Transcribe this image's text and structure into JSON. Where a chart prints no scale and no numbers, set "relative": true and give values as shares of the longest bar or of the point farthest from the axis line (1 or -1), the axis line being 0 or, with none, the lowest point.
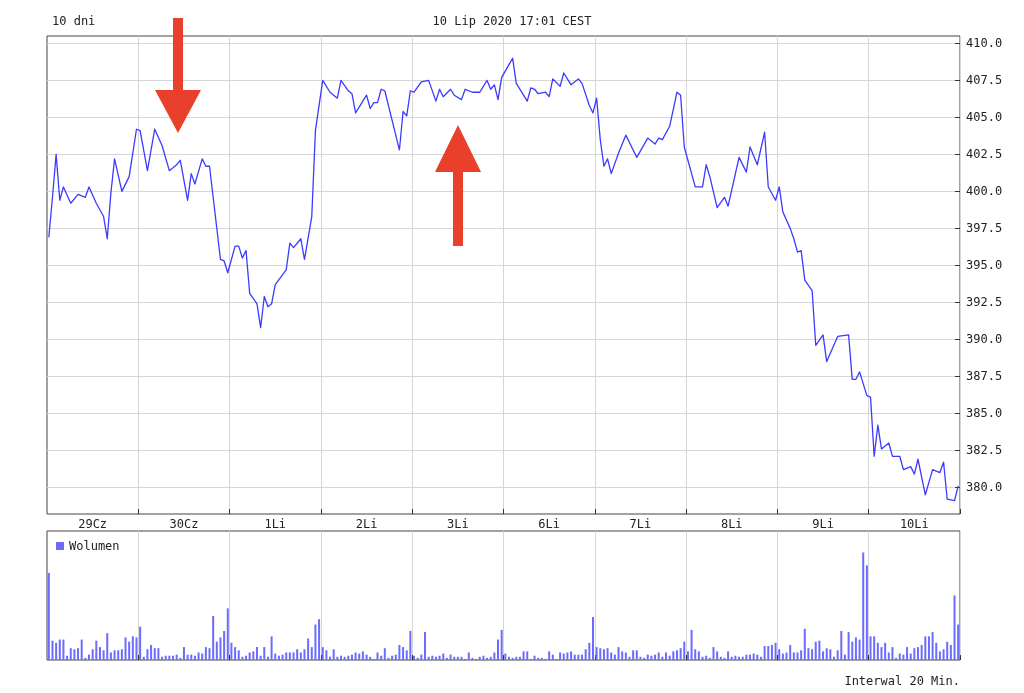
{
  "chart_data": [
    {
      "type": "line",
      "title": "10 dni",
      "subtitle": "10 Lip 2020 17:01 CEST",
      "marker": "none",
      "grid": true,
      "categories": [
        null,
        null,
        null,
        null,
        null,
        null,
        null,
        null,
        null,
        null,
        null,
        null,
        "29Cz",
        null,
        null,
        null,
        null,
        null,
        null,
        null,
        null,
        null,
        null,
        null,
        null,
        null,
        null,
        null,
        null,
        null,
        null,
        null,
        null,
        null,
        null,
        null,
        null,
        "30Cz",
        null,
        null,
        null,
        null,
        null,
        null,
        null,
        null,
        null,
        null,
        null,
        null,
        null,
        null,
        null,
        null,
        null,
        null,
        null,
        null,
        null,
        null,
        null,
        null,
        "1Li",
        null,
        null,
        null,
        null,
        null,
        null,
        null,
        null,
        null,
        null,
        null,
        null,
        null,
        null,
        null,
        null,
        null,
        null,
        null,
        null,
        null,
        null,
        null,
        null,
        "2Li",
        null,
        null,
        null,
        null,
        null,
        null,
        null,
        null,
        null,
        null,
        null,
        null,
        null,
        null,
        null,
        null,
        null,
        null,
        null,
        null,
        null,
        null,
        null,
        null,
        "3Li",
        null,
        null,
        null,
        null,
        null,
        null,
        null,
        null,
        null,
        null,
        null,
        null,
        null,
        null,
        null,
        null,
        null,
        null,
        null,
        null,
        null,
        null,
        null,
        null,
        "6Li",
        null,
        null,
        null,
        null,
        null,
        null,
        null,
        null,
        null,
        null,
        null,
        null,
        null,
        null,
        null,
        null,
        null,
        null,
        null,
        null,
        null,
        null,
        null,
        null,
        "7Li",
        null,
        null,
        null,
        null,
        null,
        null,
        null,
        null,
        null,
        null,
        null,
        null,
        null,
        null,
        null,
        null,
        null,
        null,
        null,
        null,
        null,
        null,
        null,
        null,
        "8Li",
        null,
        null,
        null,
        null,
        null,
        null,
        null,
        null,
        null,
        null,
        null,
        null,
        null,
        null,
        null,
        null,
        null,
        null,
        null,
        null,
        null,
        null,
        null,
        null,
        "9Li",
        null,
        null,
        null,
        null,
        null,
        null,
        null,
        null,
        null,
        null,
        null,
        null,
        null,
        null,
        null,
        null,
        null,
        null,
        null,
        null,
        null,
        null,
        null,
        null,
        "10Li",
        null,
        null,
        null,
        null,
        null,
        null,
        null,
        null,
        null,
        null,
        null,
        null
      ],
      "series": [
        {
          "color": "#3b3bff",
          "values": [
            396.9,
            399.6,
            402.5,
            399.4,
            400.3,
            null,
            399.2,
            null,
            399.8,
            null,
            399.6,
            400.3,
            null,
            399.2,
            null,
            398.3,
            396.8,
            399.9,
            402.2,
            null,
            400.0,
            null,
            401.0,
            null,
            404.2,
            404.1,
            null,
            401.4,
            null,
            404.2,
            null,
            403.1,
            null,
            401.4,
            null,
            401.8,
            402.1,
            null,
            399.4,
            401.2,
            400.5,
            null,
            402.2,
            401.7,
            401.7,
            null,
            null,
            395.4,
            395.3,
            394.5,
            null,
            396.3,
            396.3,
            395.5,
            396.0,
            393.1,
            null,
            392.4,
            390.8,
            392.9,
            392.2,
            392.4,
            393.7,
            null,
            null,
            394.7,
            396.5,
            396.2,
            null,
            396.8,
            395.4,
            null,
            398.3,
            404.1,
            null,
            407.5,
            null,
            406.7,
            null,
            406.3,
            407.5,
            null,
            406.8,
            406.6,
            405.3,
            null,
            null,
            406.5,
            405.6,
            406.0,
            406.0,
            406.9,
            406.8,
            null,
            404.8,
            null,
            402.8,
            405.4,
            405.1,
            406.8,
            406.7,
            null,
            407.4,
            null,
            407.5,
            null,
            406.1,
            406.9,
            406.4,
            null,
            406.9,
            406.5,
            null,
            406.2,
            406.9,
            null,
            406.7,
            null,
            406.7,
            null,
            407.5,
            406.9,
            407.2,
            406.2,
            407.7,
            null,
            null,
            409.0,
            407.3,
            null,
            null,
            406.1,
            407.0,
            406.9,
            406.6,
            null,
            406.7,
            406.4,
            407.6,
            null,
            407.1,
            408.0,
            null,
            407.2,
            null,
            407.6,
            407.3,
            null,
            405.8,
            405.3,
            406.3,
            403.5,
            401.7,
            402.2,
            401.2,
            null,
            402.6,
            null,
            403.8,
            null,
            402.8,
            402.3,
            null,
            null,
            403.6,
            null,
            403.2,
            403.6,
            403.5,
            null,
            404.4,
            null,
            406.7,
            406.5,
            403.0,
            null,
            null,
            400.3,
            null,
            400.3,
            401.8,
            401.0,
            null,
            398.9,
            null,
            399.6,
            399.0,
            null,
            null,
            402.3,
            null,
            401.3,
            403.0,
            null,
            401.8,
            null,
            404.0,
            400.3,
            null,
            399.4,
            400.3,
            398.6,
            null,
            397.5,
            396.8,
            395.9,
            396.0,
            394.0,
            null,
            393.3,
            389.6,
            null,
            390.3,
            388.5,
            null,
            null,
            390.2,
            null,
            null,
            390.3,
            387.3,
            387.3,
            387.8,
            null,
            386.2,
            386.1,
            382.1,
            384.2,
            382.6,
            null,
            383.0,
            382.1,
            null,
            382.1,
            381.2,
            null,
            381.4,
            380.9,
            381.9,
            null,
            379.5,
            null,
            381.2,
            null,
            381.0,
            381.7,
            379.2,
            null,
            379.1,
            380.1
          ]
        }
      ],
      "ylim": [
        378.2,
        410.5
      ],
      "yticks": [
        {
          "value": 380,
          "label": "380.0"
        },
        {
          "value": 382.5,
          "label": "382.5"
        },
        {
          "value": 385,
          "label": "385.0"
        },
        {
          "value": 387.5,
          "label": "387.5"
        },
        {
          "value": 390,
          "label": "390.0"
        },
        {
          "value": 392.5,
          "label": "392.5"
        },
        {
          "value": 395,
          "label": "395.0"
        },
        {
          "value": 397.5,
          "label": "397.5"
        },
        {
          "value": 400,
          "label": "400.0"
        },
        {
          "value": 402.5,
          "label": "402.5"
        },
        {
          "value": 405,
          "label": "405.0"
        },
        {
          "value": 407.5,
          "label": "407.5"
        },
        {
          "value": 410,
          "label": "410.0"
        }
      ]
    },
    {
      "type": "bar",
      "relative": true,
      "grid": "x",
      "legend": "top left",
      "annotations": [
        "Interwal 20 Min."
      ],
      "categories": [
        null,
        null,
        null,
        null,
        null,
        null,
        null,
        null,
        null,
        null,
        null,
        null,
        null,
        null,
        null,
        null,
        null,
        null,
        null,
        null,
        null,
        null,
        null,
        null,
        null,
        null,
        null,
        null,
        null,
        null,
        null,
        null,
        null,
        null,
        null,
        null,
        null,
        null,
        null,
        null,
        null,
        null,
        null,
        null,
        null,
        null,
        null,
        null,
        null,
        null,
        null,
        null,
        null,
        null,
        null,
        null,
        null,
        null,
        null,
        null,
        null,
        null,
        null,
        null,
        null,
        null,
        null,
        null,
        null,
        null,
        null,
        null,
        null,
        null,
        null,
        null,
        null,
        null,
        null,
        null,
        null,
        null,
        null,
        null,
        null,
        null,
        null,
        null,
        null,
        null,
        null,
        null,
        null,
        null,
        null,
        null,
        null,
        null,
        null,
        null,
        null,
        null,
        null,
        null,
        null,
        null,
        null,
        null,
        null,
        null,
        null,
        null,
        null,
        null,
        null,
        null,
        null,
        null,
        null,
        null,
        null,
        null,
        null,
        null,
        null,
        null,
        null,
        null,
        null,
        null,
        null,
        null,
        null,
        null,
        null,
        null,
        null,
        null,
        null,
        null,
        null,
        null,
        null,
        null,
        null,
        null,
        null,
        null,
        null,
        null,
        null,
        null,
        null,
        null,
        null,
        null,
        null,
        null,
        null,
        null,
        null,
        null,
        null,
        null,
        null,
        null,
        null,
        null,
        null,
        null,
        null,
        null,
        null,
        null,
        null,
        null,
        null,
        null,
        null,
        null,
        null,
        null,
        null,
        null,
        null,
        null,
        null,
        null,
        null,
        null,
        null,
        null,
        null,
        null,
        null,
        null,
        null,
        null,
        null,
        null,
        null,
        null,
        null,
        null,
        null,
        null,
        null,
        null,
        null,
        null,
        null,
        null,
        null,
        null,
        null,
        null,
        null,
        null,
        null,
        null,
        null,
        null,
        null,
        null,
        null,
        null,
        null,
        null,
        null,
        null,
        null,
        null,
        null,
        null,
        null,
        null,
        null,
        null,
        null,
        null,
        null,
        null,
        null,
        null,
        null,
        null,
        null,
        null,
        null,
        null
      ],
      "series": [
        {
          "name": "Wolumen",
          "color": "#6b6bff",
          "values": [
            0.81,
            0.18,
            0.16,
            0.19,
            0.19,
            0.04,
            0.11,
            0.1,
            0.11,
            0.19,
            0.02,
            0.05,
            0.1,
            0.18,
            0.12,
            0.09,
            0.25,
            0.07,
            0.09,
            0.09,
            0.1,
            0.21,
            0.17,
            0.22,
            0.21,
            0.31,
            0.03,
            0.1,
            0.14,
            0.11,
            0.11,
            0.03,
            0.04,
            0.04,
            0.04,
            0.05,
            0.02,
            0.12,
            0.05,
            0.05,
            0.04,
            0.07,
            0.06,
            0.12,
            0.11,
            0.41,
            0.17,
            0.21,
            0.27,
            0.48,
            0.16,
            0.12,
            0.09,
            0.03,
            0.04,
            0.07,
            0.08,
            0.12,
            0.04,
            0.12,
            0.03,
            0.22,
            0.06,
            0.04,
            0.05,
            0.07,
            0.07,
            0.07,
            0.1,
            0.07,
            0.1,
            0.2,
            0.12,
            0.33,
            0.38,
            0.12,
            0.09,
            0.03,
            0.1,
            0.03,
            0.04,
            0.03,
            0.04,
            0.05,
            0.07,
            0.06,
            0.08,
            0.05,
            0.03,
            0.01,
            0.07,
            0.04,
            0.11,
            0.02,
            0.04,
            0.05,
            0.14,
            0.12,
            0.09,
            0.27,
            0.04,
            0.02,
            0.05,
            0.26,
            0.03,
            0.04,
            0.03,
            0.04,
            0.06,
            0.02,
            0.05,
            0.03,
            0.03,
            0.03,
            0.01,
            0.07,
            0.02,
            0.01,
            0.03,
            0.04,
            0.02,
            0.03,
            0.07,
            0.19,
            0.28,
            0.06,
            0.03,
            0.02,
            0.03,
            0.03,
            0.08,
            0.08,
            0.01,
            0.04,
            0.02,
            0.02,
            0.01,
            0.08,
            0.05,
            0.01,
            0.07,
            0.06,
            0.07,
            0.08,
            0.05,
            0.05,
            0.05,
            0.1,
            0.16,
            0.4,
            0.12,
            0.11,
            0.1,
            0.11,
            0.07,
            0.05,
            0.12,
            0.08,
            0.07,
            0.03,
            0.09,
            0.09,
            0.03,
            0.02,
            0.05,
            0.04,
            0.05,
            0.07,
            0.03,
            0.07,
            0.04,
            0.08,
            0.09,
            0.11,
            0.17,
            0.08,
            0.28,
            0.1,
            0.08,
            0.03,
            0.04,
            0.02,
            0.12,
            0.08,
            0.03,
            0.02,
            0.08,
            0.03,
            0.04,
            0.03,
            0.03,
            0.05,
            0.05,
            0.06,
            0.05,
            0.03,
            0.13,
            0.13,
            0.14,
            0.16,
            0.1,
            0.06,
            0.07,
            0.14,
            0.07,
            0.07,
            0.09,
            0.29,
            0.11,
            0.1,
            0.17,
            0.18,
            0.08,
            0.11,
            0.1,
            0.03,
            0.09,
            0.27,
            0.05,
            0.26,
            0.17,
            0.21,
            0.19,
            1,
            0.88,
            0.22,
            0.22,
            0.16,
            0.12,
            0.16,
            0.07,
            0.12,
            0.02,
            0.06,
            0.05,
            0.12,
            0.06,
            0.11,
            0.12,
            0.14,
            0.22,
            0.22,
            0.26,
            0.16,
            0.08,
            0.1,
            0.17,
            0.14,
            0.6,
            0.33
          ]
        }
      ]
    }
  ]
}
